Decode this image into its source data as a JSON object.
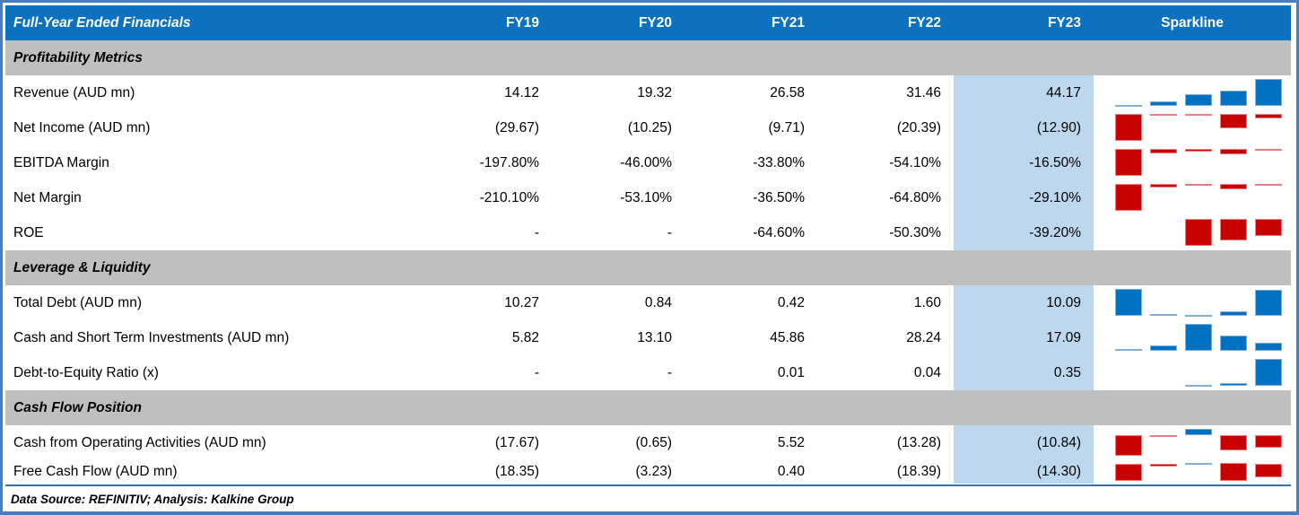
{
  "header": {
    "title": "Full-Year Ended Financials",
    "columns": [
      "FY19",
      "FY20",
      "FY21",
      "FY22",
      "FY23"
    ],
    "sparkline_label": "Sparkline"
  },
  "footer": {
    "text": "Data Source: REFINITIV; Analysis: Kalkine Group"
  },
  "colors": {
    "header_bg": "#0c71be",
    "header_text": "#ffffff",
    "section_bg": "#bfbfbf",
    "highlight_column_bg": "#bdd7ee",
    "positive_bar": "#0070c0",
    "negative_bar": "#c80000",
    "frame_border": "#4a7cbe"
  },
  "chart_data": {
    "type": "table",
    "title": "Full-Year Ended Financials",
    "columns": [
      "FY19",
      "FY20",
      "FY21",
      "FY22",
      "FY23"
    ],
    "highlight_column": "FY23",
    "sparkline_styles": {
      "positive": "blue",
      "negative": "red"
    },
    "sections": [
      {
        "title": "Profitability Metrics",
        "rows": [
          {
            "label": "Revenue (AUD mn)",
            "values": [
              "14.12",
              "19.32",
              "26.58",
              "31.46",
              "44.17"
            ],
            "numeric": [
              14.12,
              19.32,
              26.58,
              31.46,
              44.17
            ],
            "spark": {
              "axis": 1,
              "bars": [
                {
                  "f": 0.05,
                  "d": "up"
                },
                {
                  "f": 0.17,
                  "d": "up"
                },
                {
                  "f": 0.42,
                  "d": "up"
                },
                {
                  "f": 0.58,
                  "d": "up"
                },
                {
                  "f": 1,
                  "d": "up"
                }
              ]
            }
          },
          {
            "label": "Net Income (AUD mn)",
            "values": [
              "(29.67)",
              "(10.25)",
              "(9.71)",
              "(20.39)",
              "(12.90)"
            ],
            "numeric": [
              -29.67,
              -10.25,
              -9.71,
              -20.39,
              -12.9
            ],
            "spark": {
              "axis": 0,
              "bars": [
                {
                  "f": 1,
                  "d": "down"
                },
                {
                  "f": 0.05,
                  "d": "down"
                },
                {
                  "f": 0.03,
                  "d": "down"
                },
                {
                  "f": 0.54,
                  "d": "down"
                },
                {
                  "f": 0.16,
                  "d": "down"
                }
              ]
            }
          },
          {
            "label": "EBITDA Margin",
            "values": [
              "-197.80%",
              "-46.00%",
              "-33.80%",
              "-54.10%",
              "-16.50%"
            ],
            "numeric": [
              -197.8,
              -46.0,
              -33.8,
              -54.1,
              -16.5
            ],
            "spark": {
              "axis": 0,
              "bars": [
                {
                  "f": 1,
                  "d": "down"
                },
                {
                  "f": 0.16,
                  "d": "down"
                },
                {
                  "f": 0.1,
                  "d": "down"
                },
                {
                  "f": 0.21,
                  "d": "down"
                },
                {
                  "f": 0.04,
                  "d": "down"
                }
              ]
            }
          },
          {
            "label": "Net Margin",
            "values": [
              "-210.10%",
              "-53.10%",
              "-36.50%",
              "-64.80%",
              "-29.10%"
            ],
            "numeric": [
              -210.1,
              -53.1,
              -36.5,
              -64.8,
              -29.1
            ],
            "spark": {
              "axis": 0,
              "bars": [
                {
                  "f": 1,
                  "d": "down"
                },
                {
                  "f": 0.13,
                  "d": "down"
                },
                {
                  "f": 0.05,
                  "d": "down"
                },
                {
                  "f": 0.2,
                  "d": "down"
                },
                {
                  "f": 0.04,
                  "d": "down"
                }
              ]
            }
          },
          {
            "label": "ROE",
            "values": [
              "-",
              "-",
              "-64.60%",
              "-50.30%",
              "-39.20%"
            ],
            "numeric": [
              null,
              null,
              -64.6,
              -50.3,
              -39.2
            ],
            "spark": {
              "axis": 0,
              "bars": [
                null,
                null,
                {
                  "f": 1,
                  "d": "down"
                },
                {
                  "f": 0.8,
                  "d": "down"
                },
                {
                  "f": 0.63,
                  "d": "down"
                }
              ]
            }
          }
        ]
      },
      {
        "title": "Leverage & Liquidity",
        "rows": [
          {
            "label": "Total Debt (AUD mn)",
            "values": [
              "10.27",
              "0.84",
              "0.42",
              "1.60",
              "10.09"
            ],
            "numeric": [
              10.27,
              0.84,
              0.42,
              1.6,
              10.09
            ],
            "spark": {
              "axis": 1,
              "bars": [
                {
                  "f": 1,
                  "d": "up"
                },
                {
                  "f": 0.08,
                  "d": "up"
                },
                {
                  "f": 0.04,
                  "d": "up"
                },
                {
                  "f": 0.16,
                  "d": "up"
                },
                {
                  "f": 0.98,
                  "d": "up"
                }
              ]
            }
          },
          {
            "label": "Cash and Short Term Investments (AUD mn)",
            "values": [
              "5.82",
              "13.10",
              "45.86",
              "28.24",
              "17.09"
            ],
            "numeric": [
              5.82,
              13.1,
              45.86,
              28.24,
              17.09
            ],
            "spark": {
              "axis": 1,
              "bars": [
                {
                  "f": 0.08,
                  "d": "up"
                },
                {
                  "f": 0.19,
                  "d": "up"
                },
                {
                  "f": 1,
                  "d": "up"
                },
                {
                  "f": 0.57,
                  "d": "up"
                },
                {
                  "f": 0.29,
                  "d": "up"
                }
              ]
            }
          },
          {
            "label": "Debt-to-Equity Ratio (x)",
            "values": [
              "-",
              "-",
              "0.01",
              "0.04",
              "0.35"
            ],
            "numeric": [
              null,
              null,
              0.01,
              0.04,
              0.35
            ],
            "spark": {
              "axis": 1,
              "bars": [
                null,
                null,
                {
                  "f": 0.04,
                  "d": "up"
                },
                {
                  "f": 0.11,
                  "d": "up"
                },
                {
                  "f": 1,
                  "d": "up"
                }
              ]
            }
          }
        ]
      },
      {
        "title": "Cash Flow Position",
        "rows": [
          {
            "label": "Cash from Operating Activities (AUD mn)",
            "values": [
              "(17.67)",
              "(0.65)",
              "5.52",
              "(13.28)",
              "(10.84)"
            ],
            "numeric": [
              -17.67,
              -0.65,
              5.52,
              -13.28,
              -10.84
            ],
            "spark": {
              "axis": 0.24,
              "bars": [
                {
                  "f": 0.76,
                  "d": "down"
                },
                {
                  "f": 0.03,
                  "d": "down"
                },
                {
                  "f": 0.24,
                  "d": "up"
                },
                {
                  "f": 0.57,
                  "d": "down"
                },
                {
                  "f": 0.47,
                  "d": "down"
                }
              ]
            }
          },
          {
            "label": "Free Cash Flow (AUD mn)",
            "values": [
              "(18.35)",
              "(3.23)",
              "0.40",
              "(18.39)",
              "(14.30)"
            ],
            "numeric": [
              -18.35,
              -3.23,
              0.4,
              -18.39,
              -14.3
            ],
            "spark": {
              "axis": 0.03,
              "bars": [
                {
                  "f": 0.97,
                  "d": "down"
                },
                {
                  "f": 0.17,
                  "d": "down"
                },
                {
                  "f": 0.03,
                  "d": "up"
                },
                {
                  "f": 0.98,
                  "d": "down"
                },
                {
                  "f": 0.76,
                  "d": "down"
                }
              ]
            }
          }
        ]
      }
    ]
  }
}
